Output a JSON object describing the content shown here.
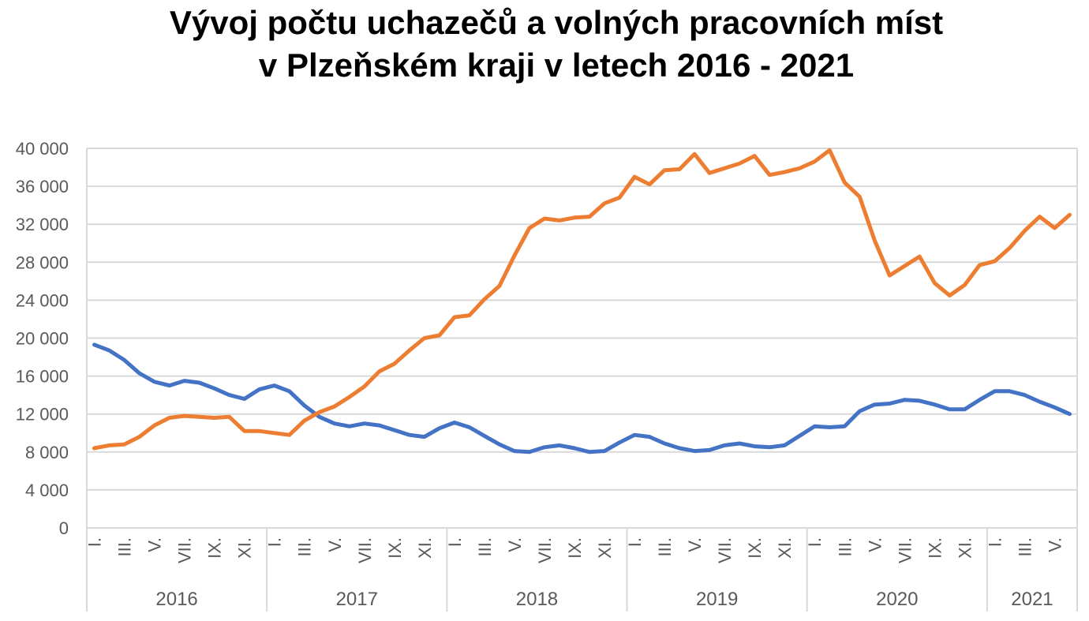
{
  "title": {
    "line1": "Vývoj počtu uchazečů a volných pracovních míst",
    "line2": "v Plzeňském kraji v letech 2016 - 2021"
  },
  "chart_data": {
    "type": "line",
    "title": "Vývoj počtu uchazečů a volných pracovních míst v Plzeňském kraji v letech 2016 - 2021",
    "xlabel": "",
    "ylabel": "",
    "ylim": [
      0,
      40000
    ],
    "yticks": [
      "0",
      "4 000",
      "8 000",
      "12 000",
      "16 000",
      "20 000",
      "24 000",
      "28 000",
      "32 000",
      "36 000",
      "40 000"
    ],
    "grid": "horizontal",
    "legend": "none",
    "years": [
      {
        "label": "2016",
        "months": 12
      },
      {
        "label": "2017",
        "months": 12
      },
      {
        "label": "2018",
        "months": 12
      },
      {
        "label": "2019",
        "months": 12
      },
      {
        "label": "2020",
        "months": 12
      },
      {
        "label": "2021",
        "months": 6
      }
    ],
    "month_tick_labels": [
      "I.",
      "III.",
      "V.",
      "VII.",
      "IX.",
      "XI."
    ],
    "month_tick_labels_2021": [
      "I.",
      "III.",
      "V."
    ],
    "series": [
      {
        "color": "#4472C4",
        "values": [
          19300,
          18700,
          17700,
          16300,
          15400,
          15000,
          15500,
          15300,
          14700,
          14000,
          13600,
          14600,
          15000,
          14400,
          12900,
          11700,
          11000,
          10700,
          11000,
          10800,
          10300,
          9800,
          9600,
          10500,
          11100,
          10600,
          9700,
          8800,
          8100,
          8000,
          8500,
          8700,
          8400,
          8000,
          8100,
          9000,
          9800,
          9600,
          8900,
          8400,
          8100,
          8200,
          8700,
          8900,
          8600,
          8500,
          8700,
          9700,
          10700,
          10600,
          10700,
          12300,
          13000,
          13100,
          13500,
          13400,
          13000,
          12500,
          12500,
          13500,
          14400,
          14400,
          14000,
          13300,
          12700,
          12000
        ]
      },
      {
        "color": "#ED7D31",
        "values": [
          8400,
          8700,
          8800,
          9600,
          10800,
          11600,
          11800,
          11700,
          11600,
          11700,
          10200,
          10200,
          10000,
          9800,
          11300,
          12200,
          12800,
          13800,
          14900,
          16500,
          17300,
          18700,
          20000,
          20300,
          22200,
          22400,
          24100,
          25500,
          28700,
          31600,
          32600,
          32400,
          32700,
          32800,
          34200,
          34800,
          37000,
          36200,
          37700,
          37800,
          39400,
          37400,
          37900,
          38400,
          39200,
          37200,
          37500,
          37900,
          38600,
          39800,
          36400,
          34900,
          30300,
          26600,
          27600,
          28600,
          25800,
          24500,
          25600,
          27700,
          28100,
          29500,
          31300,
          32800,
          31600,
          33000
        ]
      }
    ]
  }
}
